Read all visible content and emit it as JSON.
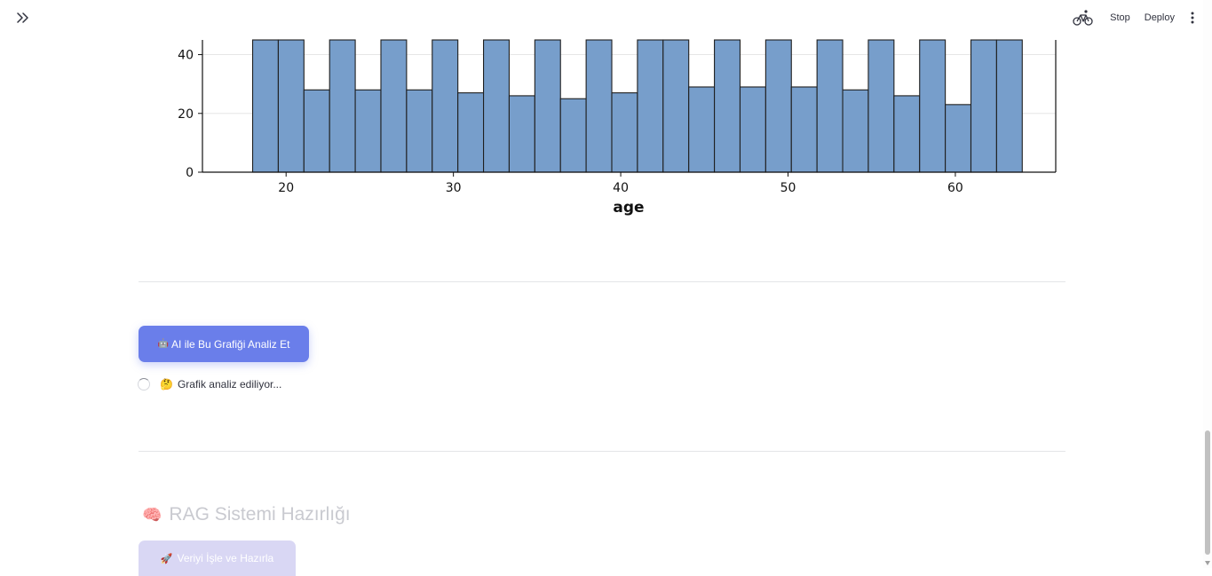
{
  "header": {
    "stop_label": "Stop",
    "deploy_label": "Deploy"
  },
  "chart_data": {
    "type": "bar",
    "xlabel": "age",
    "xlim": [
      15,
      66
    ],
    "ylim": [
      0,
      45
    ],
    "xticks": [
      20,
      30,
      40,
      50,
      60
    ],
    "yticks": [
      0,
      20,
      40
    ],
    "bin_width": 1.5333,
    "bins_start": 18,
    "values": [
      45,
      45,
      28,
      45,
      28,
      45,
      28,
      45,
      27,
      45,
      26,
      45,
      25,
      45,
      27,
      45,
      45,
      29,
      45,
      29,
      45,
      29,
      45,
      28,
      45,
      26,
      45,
      23,
      45,
      45
    ],
    "bar_color": "#779ecb",
    "edge_color": "#1f1f1f",
    "grid": "y"
  },
  "analyze_button": {
    "emoji": "🤖",
    "label": "AI ile Bu Grafiği Analiz Et"
  },
  "status": {
    "emoji": "🤔",
    "text": "Grafik analiz ediliyor..."
  },
  "rag_section": {
    "emoji": "🧠",
    "title": "RAG Sistemi Hazırlığı",
    "button_emoji": "🚀",
    "button_label": "Veriyi İşle ve Hazırla"
  },
  "colors": {
    "primary": "#6a7eea",
    "primary_muted": "#d7d5f4",
    "text": "#31333f"
  }
}
